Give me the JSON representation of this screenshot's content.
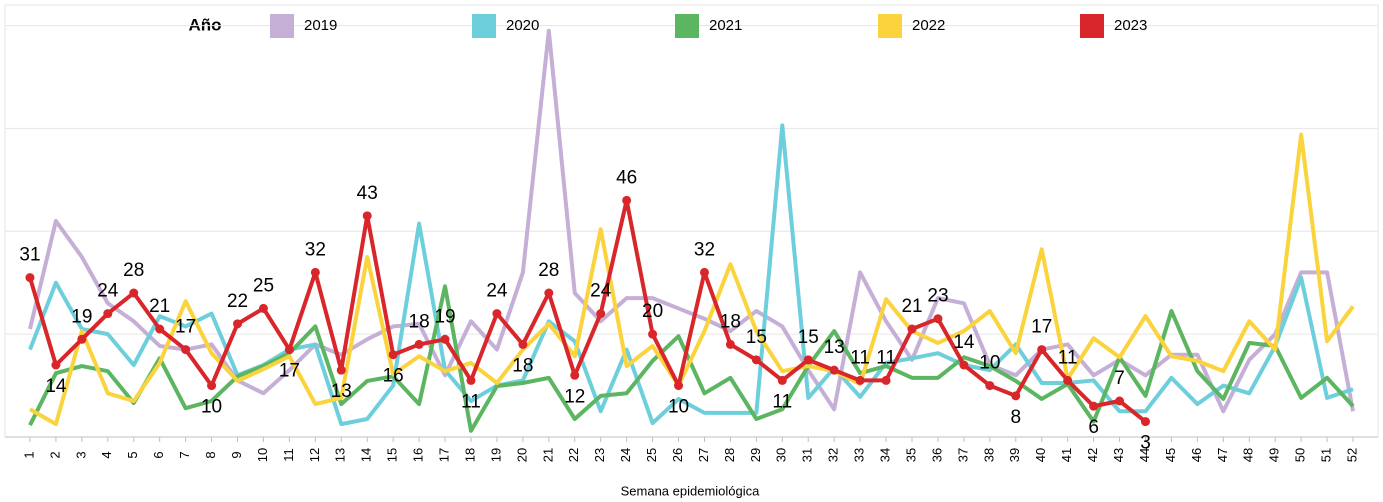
{
  "chart_data": {
    "type": "line",
    "x_label": "Semana epidemiológica",
    "legend_title": "Año",
    "legend": "top",
    "grid": true,
    "ylim": [
      0,
      84
    ],
    "yticks": [
      0,
      20,
      40,
      60,
      80
    ],
    "categories": [
      "1",
      "2",
      "3",
      "4",
      "5",
      "6",
      "7",
      "8",
      "9",
      "10",
      "11",
      "12",
      "13",
      "14",
      "15",
      "16",
      "17",
      "18",
      "19",
      "20",
      "21",
      "22",
      "23",
      "24",
      "25",
      "26",
      "27",
      "28",
      "29",
      "30",
      "31",
      "32",
      "33",
      "34",
      "35",
      "36",
      "37",
      "38",
      "39",
      "40",
      "41",
      "42",
      "43",
      "44",
      "45",
      "46",
      "47",
      "48",
      "49",
      "50",
      "51",
      "52"
    ],
    "series": [
      {
        "name": "2019",
        "color": "#c5afd7",
        "values": [
          21,
          42,
          35,
          26,
          22.5,
          17.7,
          17,
          18,
          11,
          8.5,
          13,
          18,
          16,
          19,
          21.5,
          22,
          12,
          22.5,
          17,
          32,
          79,
          28,
          22.5,
          27,
          27,
          25,
          23,
          20.6,
          24.5,
          21.5,
          13,
          5.4,
          32,
          22.5,
          15,
          27,
          26,
          14,
          12,
          17,
          18,
          12,
          15,
          12,
          16,
          16,
          5,
          15,
          20,
          32,
          32,
          5
        ]
      },
      {
        "name": "2020",
        "color": "#6ecfdc",
        "values": [
          17,
          30,
          21,
          20,
          14,
          23.5,
          21.5,
          24,
          12,
          14,
          17,
          18,
          2.5,
          3.5,
          10,
          41.5,
          13,
          7,
          10,
          11,
          22.5,
          18.6,
          5,
          17,
          2.7,
          7.4,
          4.7,
          4.7,
          4.7,
          60.6,
          7.6,
          13.4,
          7.8,
          14.4,
          15.3,
          16.3,
          14,
          13,
          18,
          10.5,
          10.5,
          11,
          5,
          5,
          11.5,
          6.4,
          10,
          8.5,
          17.7,
          31,
          7.6,
          9.3
        ]
      },
      {
        "name": "2021",
        "color": "#5cb561",
        "values": [
          2.3,
          12.4,
          13.8,
          12.8,
          6.6,
          15.3,
          5.6,
          7,
          11.8,
          13.8,
          16.3,
          21.5,
          6.4,
          10.9,
          11.8,
          6.4,
          29.3,
          1.2,
          9.9,
          10.5,
          11.5,
          3.5,
          8,
          8.5,
          14.8,
          19.6,
          8.5,
          11.5,
          3.5,
          5.4,
          13.8,
          20.6,
          12.4,
          13.8,
          11.5,
          11.5,
          15.5,
          13.8,
          10.9,
          7.4,
          10.3,
          3,
          15.5,
          8,
          24.5,
          12.8,
          7.4,
          18.3,
          17.7,
          7.6,
          11.5,
          6
        ]
      },
      {
        "name": "2022",
        "color": "#fad33d",
        "values": [
          5.4,
          2.5,
          20.6,
          8.5,
          7,
          14.4,
          26.4,
          16.3,
          10.9,
          13.2,
          15.7,
          6.4,
          7.6,
          35,
          12.2,
          15.7,
          12.8,
          14.4,
          10.5,
          17,
          22,
          15.7,
          40.4,
          13.8,
          17.7,
          10,
          20.6,
          33.6,
          20.6,
          12.8,
          13.8,
          12.8,
          10.3,
          26.8,
          20.6,
          18.3,
          20.6,
          24.5,
          16.3,
          36.5,
          11.3,
          19.2,
          15.5,
          23.5,
          15.7,
          14.8,
          12.8,
          22.5,
          17,
          58.8,
          18.6,
          25.4
        ]
      },
      {
        "name": "2023",
        "color": "#d9262a",
        "markers": true,
        "labels": true,
        "values": [
          31,
          14,
          19,
          24,
          28,
          21,
          17,
          10,
          22,
          25,
          17,
          32,
          13,
          43,
          16,
          18,
          19,
          11,
          24,
          18,
          28,
          12,
          24,
          46,
          20,
          10,
          32,
          18,
          15,
          11,
          15,
          13,
          11,
          11,
          21,
          23,
          14,
          10,
          8,
          17,
          11,
          6,
          7,
          3,
          null,
          null,
          null,
          null,
          null,
          null,
          null,
          null
        ]
      }
    ]
  }
}
